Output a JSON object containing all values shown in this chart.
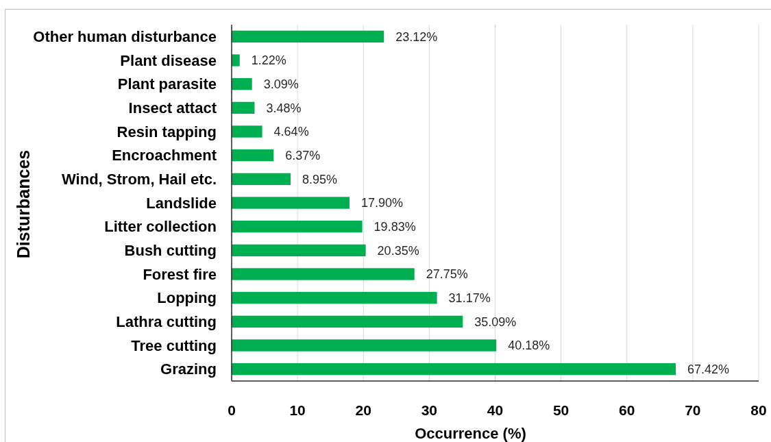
{
  "chart_data": {
    "type": "bar",
    "orientation": "horizontal",
    "xlabel": "Occurrence (%)",
    "ylabel": "Disturbances",
    "categories": [
      "Other human disturbance",
      "Plant disease",
      "Plant parasite",
      "Insect attact",
      "Resin tapping",
      "Encroachment",
      "Wind, Strom, Hail etc.",
      "Landslide",
      "Litter collection",
      "Bush cutting",
      "Forest fire",
      "Lopping",
      "Lathra cutting",
      "Tree cutting",
      "Grazing"
    ],
    "values": [
      23.12,
      1.22,
      3.09,
      3.48,
      4.64,
      6.37,
      8.95,
      17.9,
      19.83,
      20.35,
      27.75,
      31.17,
      35.09,
      40.18,
      67.42
    ],
    "value_labels": [
      "23.12%",
      "1.22%",
      "3.09%",
      "3.48%",
      "4.64%",
      "6.37%",
      "8.95%",
      "17.90%",
      "19.83%",
      "20.35%",
      "27.75%",
      "31.17%",
      "35.09%",
      "40.18%",
      "67.42%"
    ],
    "color": "#00b050",
    "xlim": [
      0,
      80
    ],
    "xticks": [
      0,
      10,
      20,
      30,
      40,
      50,
      60,
      70,
      80
    ],
    "grid": "x"
  }
}
